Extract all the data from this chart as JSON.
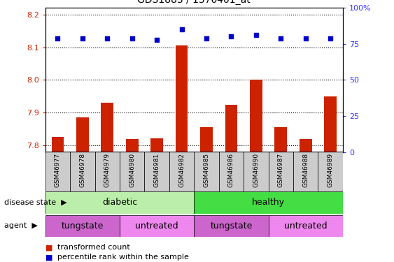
{
  "title": "GDS1883 / 1376401_at",
  "samples": [
    "GSM46977",
    "GSM46978",
    "GSM46979",
    "GSM46980",
    "GSM46981",
    "GSM46982",
    "GSM46985",
    "GSM46986",
    "GSM46990",
    "GSM46987",
    "GSM46988",
    "GSM46989"
  ],
  "transformed_counts": [
    7.825,
    7.885,
    7.93,
    7.82,
    7.822,
    8.105,
    7.855,
    7.925,
    8.0,
    7.855,
    7.82,
    7.95
  ],
  "percentile_ranks": [
    79,
    79,
    79,
    79,
    78,
    85,
    79,
    80,
    81,
    79,
    79,
    79
  ],
  "ylim_left": [
    7.78,
    8.22
  ],
  "ylim_right": [
    0,
    100
  ],
  "yticks_left": [
    7.8,
    7.9,
    8.0,
    8.1,
    8.2
  ],
  "yticks_right": [
    0,
    25,
    50,
    75,
    100
  ],
  "ytick_right_labels": [
    "0",
    "25",
    "50",
    "75",
    "100%"
  ],
  "disease_state_groups": [
    {
      "label": "diabetic",
      "start": 0,
      "end": 6,
      "color": "#BBEEAA"
    },
    {
      "label": "healthy",
      "start": 6,
      "end": 12,
      "color": "#44DD44"
    }
  ],
  "agent_groups": [
    {
      "label": "tungstate",
      "start": 0,
      "end": 3,
      "color": "#CC66CC"
    },
    {
      "label": "untreated",
      "start": 3,
      "end": 6,
      "color": "#EE88EE"
    },
    {
      "label": "tungstate",
      "start": 6,
      "end": 9,
      "color": "#CC66CC"
    },
    {
      "label": "untreated",
      "start": 9,
      "end": 12,
      "color": "#EE88EE"
    }
  ],
  "bar_color": "#CC2200",
  "dot_color": "#0000CC",
  "bg_color": "#FFFFFF",
  "tick_color_left": "#CC2200",
  "tick_color_right": "#3333FF",
  "sample_bg_color": "#CCCCCC"
}
